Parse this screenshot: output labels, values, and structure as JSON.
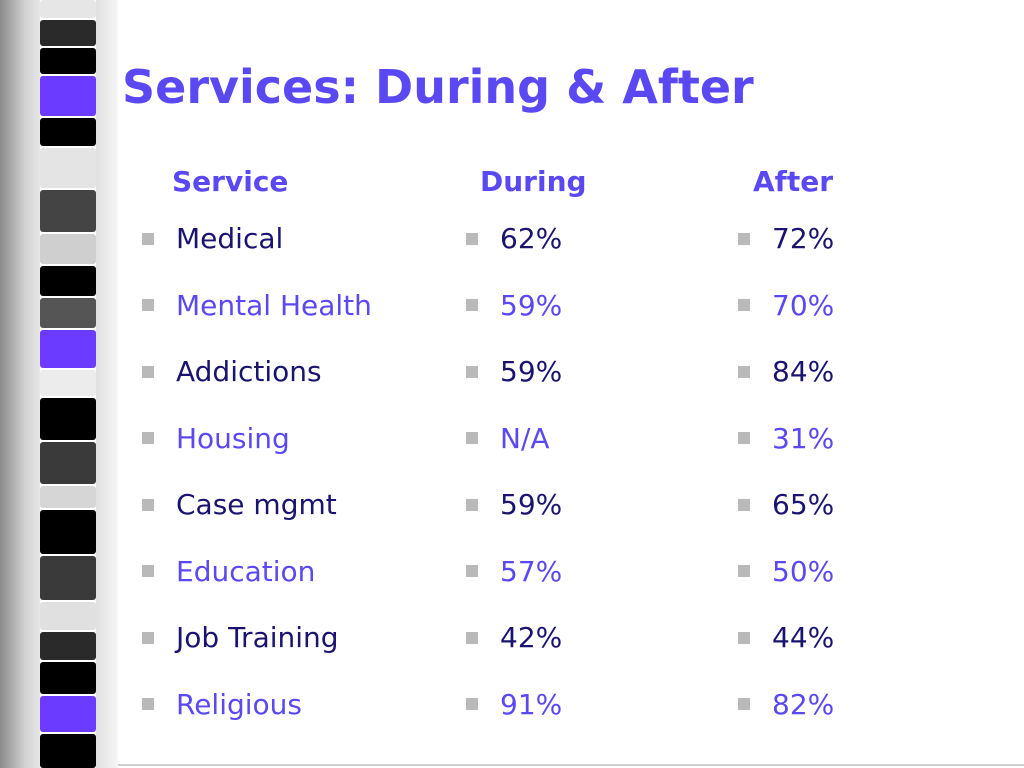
{
  "slide": {
    "title": "Services: During & After",
    "headers": {
      "service": "Service",
      "during": "During",
      "after": "After"
    },
    "rows": [
      {
        "service": "Medical",
        "during": "62%",
        "after": "72%"
      },
      {
        "service": "Mental Health",
        "during": "59%",
        "after": "70%"
      },
      {
        "service": "Addictions",
        "during": "59%",
        "after": "84%"
      },
      {
        "service": "Housing",
        "during": "N/A",
        "after": "31%"
      },
      {
        "service": "Case mgmt",
        "during": "59%",
        "after": "65%"
      },
      {
        "service": "Education",
        "during": "57%",
        "after": "50%"
      },
      {
        "service": "Job Training",
        "during": "42%",
        "after": "44%"
      },
      {
        "service": "Religious",
        "during": "91%",
        "after": "82%"
      }
    ],
    "colors": {
      "title": "#5a48f2",
      "text_dark": "#1a1470",
      "text_light": "#5a48f2",
      "bullet": "#b9b9b9",
      "strip_accent": "#6b3cff"
    }
  }
}
